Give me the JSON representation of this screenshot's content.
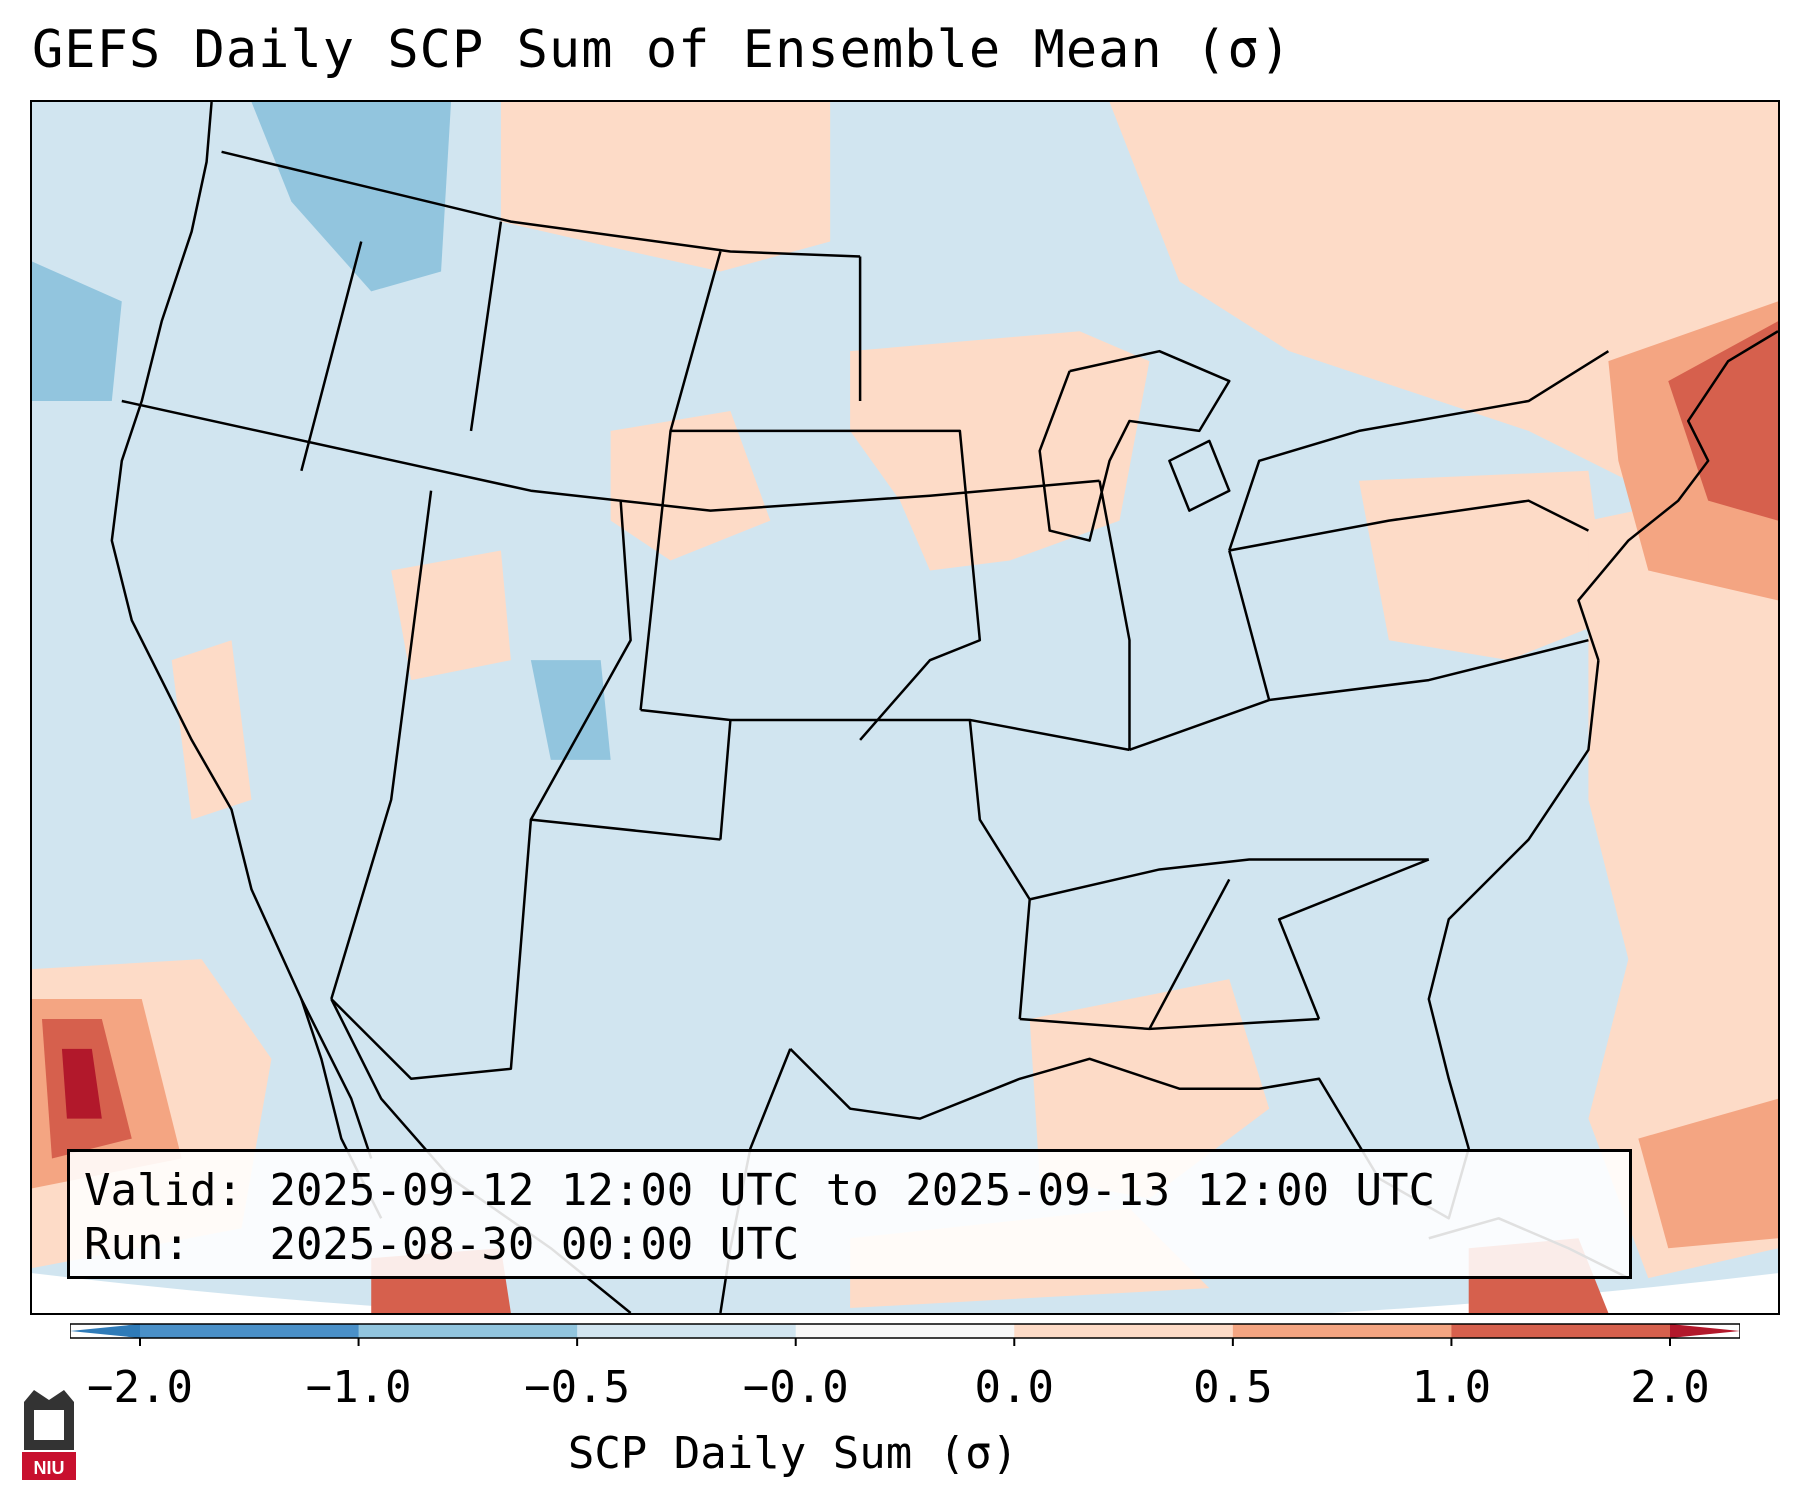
{
  "title": "GEFS Daily SCP Sum of Ensemble Mean (σ)",
  "info": {
    "valid_label": "Valid:",
    "valid_value": "2025-09-12 12:00 UTC to 2025-09-13 12:00 UTC",
    "run_label": "Run:",
    "run_value": "2025-08-30 00:00 UTC"
  },
  "colorbar": {
    "label": "SCP Daily Sum (σ)",
    "ticks": [
      "−2.0",
      "−1.0",
      "−0.5",
      "−0.0",
      "0.0",
      "0.5",
      "1.0",
      "2.0"
    ],
    "bins": [
      {
        "range": "< -2.0",
        "color": "#2f7bb8"
      },
      {
        "range": "-2.0 to -1.0",
        "color": "#4a90c8"
      },
      {
        "range": "-1.0 to -0.5",
        "color": "#92c5de"
      },
      {
        "range": "-0.5 to -0.0",
        "color": "#d1e5f0"
      },
      {
        "range": "-0.0 to 0.0",
        "color": "#f7f7f7"
      },
      {
        "range": "0.0 to 0.5",
        "color": "#fddbc7"
      },
      {
        "range": "0.5 to 1.0",
        "color": "#f4a582"
      },
      {
        "range": "1.0 to 2.0",
        "color": "#d6604d"
      },
      {
        "range": "> 2.0",
        "color": "#b2182b"
      }
    ]
  },
  "logo": {
    "text": "NIU",
    "colors": {
      "shield": "#333333",
      "banner": "#c8102e"
    }
  }
}
